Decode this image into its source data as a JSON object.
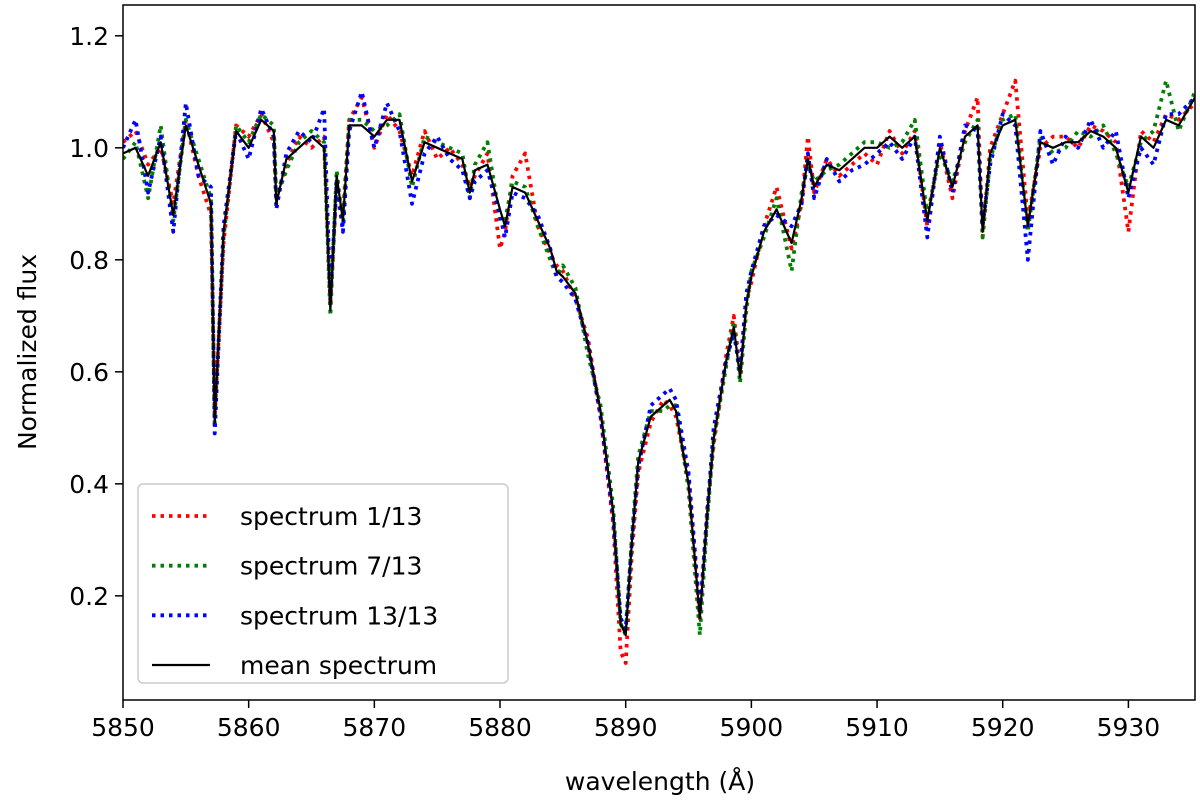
{
  "chart_data": {
    "type": "line",
    "xlabel": "wavelength (Å)",
    "ylabel": "Normalized flux",
    "x": [
      5850,
      5851,
      5852,
      5853,
      5854,
      5855,
      5856,
      5857,
      5857.3,
      5858,
      5859,
      5860,
      5861,
      5862,
      5862.2,
      5863,
      5864,
      5865,
      5866,
      5866.5,
      5867,
      5867.5,
      5868,
      5869,
      5870,
      5871,
      5872,
      5873,
      5874,
      5875,
      5876,
      5877,
      5877.6,
      5878,
      5879,
      5880,
      5880.4,
      5881,
      5882,
      5883,
      5884,
      5884.5,
      5885,
      5886,
      5887,
      5888,
      5889,
      5889.6,
      5890,
      5890.5,
      5891,
      5892,
      5893,
      5893.5,
      5894,
      5895,
      5895.9,
      5896.5,
      5897,
      5898,
      5898.6,
      5899.1,
      5899.6,
      5900,
      5901,
      5902,
      5903.2,
      5904,
      5904.5,
      5905,
      5906,
      5907,
      5908,
      5909,
      5910,
      5911,
      5912,
      5913,
      5914,
      5915,
      5916,
      5917,
      5918,
      5918.4,
      5919,
      5920,
      5921,
      5922,
      5923,
      5924,
      5925,
      5926,
      5927,
      5928,
      5929,
      5930,
      5931,
      5932,
      5933,
      5934,
      5935.3
    ],
    "series": [
      {
        "name": "spectrum 1/13",
        "color": "#ff0000",
        "linestyle": "dotted",
        "values": [
          1.01,
          1.03,
          0.97,
          1.0,
          0.9,
          1.05,
          0.95,
          0.88,
          0.52,
          0.83,
          1.04,
          1.02,
          1.06,
          1.01,
          0.91,
          0.97,
          1.02,
          1.0,
          1.02,
          0.72,
          0.93,
          0.88,
          1.05,
          1.09,
          1.0,
          1.06,
          1.03,
          0.95,
          1.03,
          0.98,
          1.0,
          0.97,
          0.93,
          0.95,
          0.99,
          0.82,
          0.85,
          0.95,
          0.99,
          0.86,
          0.81,
          0.79,
          0.78,
          0.73,
          0.66,
          0.52,
          0.33,
          0.1,
          0.08,
          0.28,
          0.42,
          0.51,
          0.55,
          0.54,
          0.52,
          0.41,
          0.16,
          0.36,
          0.47,
          0.63,
          0.7,
          0.6,
          0.73,
          0.76,
          0.86,
          0.93,
          0.82,
          0.9,
          1.02,
          0.92,
          0.98,
          0.95,
          0.97,
          0.99,
          0.97,
          1.03,
          0.99,
          1.03,
          0.86,
          1.01,
          0.91,
          1.03,
          1.09,
          0.84,
          1.0,
          1.06,
          1.12,
          0.87,
          1.0,
          1.02,
          1.02,
          1.0,
          1.04,
          1.03,
          1.01,
          0.85,
          1.03,
          1.01,
          1.06,
          1.05,
          1.08
        ]
      },
      {
        "name": "spectrum 7/13",
        "color": "#008000",
        "linestyle": "dotted",
        "values": [
          0.98,
          1.01,
          0.91,
          1.04,
          0.87,
          1.05,
          0.98,
          0.91,
          0.5,
          0.84,
          1.04,
          1.01,
          1.06,
          1.04,
          0.91,
          0.96,
          1.01,
          1.03,
          1.01,
          0.7,
          0.96,
          0.86,
          1.05,
          1.05,
          1.03,
          1.04,
          1.06,
          0.93,
          1.02,
          1.01,
          1.0,
          0.99,
          0.91,
          0.97,
          1.01,
          0.87,
          0.87,
          0.94,
          0.93,
          0.86,
          0.8,
          0.77,
          0.79,
          0.75,
          0.63,
          0.54,
          0.36,
          0.15,
          0.13,
          0.31,
          0.45,
          0.53,
          0.53,
          0.54,
          0.54,
          0.39,
          0.13,
          0.34,
          0.48,
          0.61,
          0.69,
          0.58,
          0.71,
          0.78,
          0.84,
          0.91,
          0.78,
          0.92,
          0.97,
          0.94,
          0.96,
          0.97,
          0.99,
          1.01,
          1.01,
          1.0,
          1.01,
          1.05,
          0.88,
          0.99,
          0.94,
          1.01,
          1.05,
          0.84,
          0.98,
          1.05,
          1.06,
          0.85,
          1.02,
          0.99,
          1.0,
          1.03,
          1.02,
          1.04,
          0.99,
          0.93,
          1.01,
          1.03,
          1.12,
          1.03,
          1.1
        ]
      },
      {
        "name": "spectrum 13/13",
        "color": "#0000ff",
        "linestyle": "dotted",
        "values": [
          1.0,
          1.05,
          0.92,
          1.02,
          0.85,
          1.08,
          0.95,
          0.93,
          0.49,
          0.86,
          1.03,
          0.98,
          1.07,
          1.02,
          0.89,
          0.99,
          1.03,
          1.01,
          1.07,
          0.73,
          0.94,
          0.85,
          1.03,
          1.1,
          1.0,
          1.08,
          1.03,
          0.9,
          0.99,
          1.02,
          0.98,
          0.96,
          0.91,
          0.94,
          0.96,
          0.88,
          0.84,
          0.92,
          0.91,
          0.88,
          0.82,
          0.77,
          0.76,
          0.73,
          0.65,
          0.52,
          0.34,
          0.16,
          0.14,
          0.3,
          0.43,
          0.54,
          0.56,
          0.57,
          0.55,
          0.42,
          0.17,
          0.35,
          0.5,
          0.62,
          0.67,
          0.6,
          0.74,
          0.78,
          0.86,
          0.88,
          0.86,
          0.9,
          0.99,
          0.91,
          0.98,
          0.94,
          0.96,
          0.97,
          0.99,
          1.01,
          0.98,
          1.02,
          0.84,
          1.02,
          0.92,
          1.04,
          1.03,
          0.86,
          0.97,
          1.06,
          1.04,
          0.8,
          1.03,
          0.97,
          1.02,
          1.0,
          1.05,
          1.0,
          1.03,
          0.91,
          1.0,
          0.97,
          1.06,
          1.06,
          1.09
        ]
      },
      {
        "name": "mean spectrum",
        "color": "#000000",
        "linestyle": "solid",
        "values": [
          0.99,
          1.0,
          0.95,
          1.01,
          0.88,
          1.04,
          0.97,
          0.9,
          0.51,
          0.85,
          1.03,
          1.0,
          1.05,
          1.03,
          0.9,
          0.98,
          1.0,
          1.02,
          1.0,
          0.71,
          0.95,
          0.87,
          1.04,
          1.04,
          1.02,
          1.05,
          1.05,
          0.94,
          1.01,
          1.0,
          0.99,
          0.98,
          0.92,
          0.96,
          0.97,
          0.89,
          0.86,
          0.93,
          0.92,
          0.87,
          0.82,
          0.78,
          0.77,
          0.74,
          0.65,
          0.53,
          0.35,
          0.15,
          0.13,
          0.3,
          0.44,
          0.52,
          0.54,
          0.55,
          0.53,
          0.4,
          0.16,
          0.35,
          0.48,
          0.62,
          0.68,
          0.59,
          0.72,
          0.77,
          0.85,
          0.89,
          0.83,
          0.91,
          0.98,
          0.93,
          0.97,
          0.96,
          0.98,
          1.0,
          1.0,
          1.02,
          1.0,
          1.02,
          0.87,
          1.0,
          0.93,
          1.02,
          1.04,
          0.85,
          0.99,
          1.04,
          1.05,
          0.86,
          1.01,
          1.0,
          1.01,
          1.01,
          1.03,
          1.02,
          1.0,
          0.92,
          1.02,
          1.0,
          1.05,
          1.04,
          1.09
        ]
      }
    ],
    "xlim": [
      5850,
      5935.3
    ],
    "ylim": [
      0.014,
      1.255
    ],
    "xticks": [
      5850,
      5860,
      5870,
      5880,
      5890,
      5900,
      5910,
      5920,
      5930
    ],
    "yticks": [
      0.2,
      0.4,
      0.6,
      0.8,
      {
        "value": 1,
        "label": "1.0"
      },
      1.2
    ],
    "grid": false,
    "legend": "lower left"
  }
}
